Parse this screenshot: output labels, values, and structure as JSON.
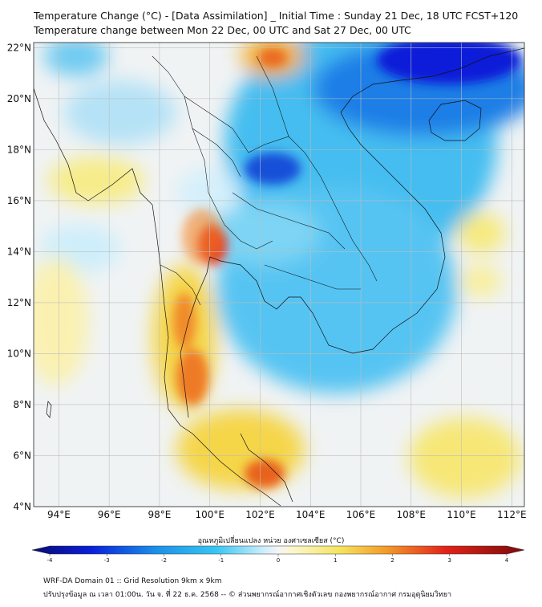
{
  "header": {
    "title_line1": "Temperature Change (°C) - [Data Assimilation] _ Initial Time : Sunday 21 Dec, 18 UTC FCST+120",
    "title_line2": "Temperature change between Mon 22 Dec, 00 UTC and Sat 27 Dec, 00 UTC"
  },
  "map": {
    "lat_labels": [
      "22°N",
      "20°N",
      "18°N",
      "16°N",
      "14°N",
      "12°N",
      "10°N",
      "8°N",
      "6°N",
      "4°N"
    ],
    "lon_labels": [
      "94°E",
      "96°E",
      "98°E",
      "100°E",
      "102°E",
      "104°E",
      "106°E",
      "108°E",
      "110°E",
      "112°E"
    ],
    "lat_values": [
      22,
      20,
      18,
      16,
      14,
      12,
      10,
      8,
      6,
      4
    ],
    "lon_values": [
      94,
      96,
      98,
      100,
      102,
      104,
      106,
      108,
      110,
      112
    ],
    "extent": {
      "lon_min": 93.0,
      "lon_max": 112.5,
      "lat_min": 4.0,
      "lat_max": 22.2
    }
  },
  "colorbar": {
    "title": "อุณหภูมิเปลี่ยนแปลง หน่วย องศาเซลเซียส (°C)",
    "tick_labels": [
      "-4",
      "-3",
      "-2",
      "-1",
      "0",
      "1",
      "2",
      "3",
      "4"
    ],
    "min": -4,
    "max": 4
  },
  "footer": {
    "line1": "WRF-DA Domain 01 :: Grid Resolution 9km x 9km",
    "line2": "ปรับปรุงข้อมูล ณ เวลา 01:00น. วัน จ. ที่ 22 ธ.ค. 2568 -- © ส่วนพยากรณ์อากาศเชิงตัวเลข กองพยากรณ์อากาศ กรมอุตุนิยมวิทยา"
  },
  "colors": {
    "neutral": "#f2f2f2",
    "cold": "#0a1fd8",
    "cool": "#39c6f2",
    "warm": "#f5e45e",
    "hot": "#e2231a"
  }
}
